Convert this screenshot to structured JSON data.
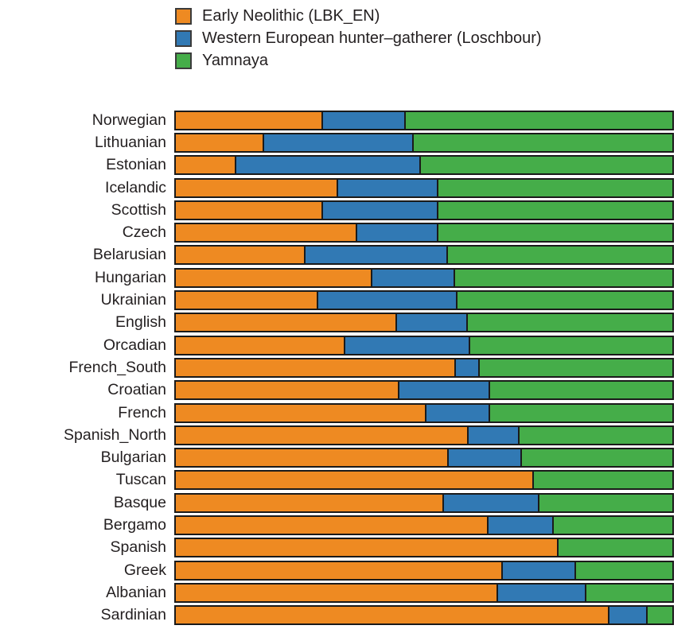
{
  "chart_data": {
    "type": "bar",
    "orientation": "horizontal",
    "stacked": true,
    "title": "",
    "xlabel": "",
    "ylabel": "",
    "units": "percent ancestry (bars span 0-100%)",
    "xlim": [
      0,
      100
    ],
    "grid": false,
    "legend_position": "top",
    "legend": [
      {
        "label": "Early Neolithic (LBK_EN)",
        "color": "#ee8a22"
      },
      {
        "label": "Western European hunter–gatherer (Loschbour)",
        "color": "#3179b4"
      },
      {
        "label": "Yamnaya",
        "color": "#45ad49"
      }
    ],
    "categories": [
      "Norwegian",
      "Lithuanian",
      "Estonian",
      "Icelandic",
      "Scottish",
      "Czech",
      "Belarusian",
      "Hungarian",
      "Ukrainian",
      "English",
      "Orcadian",
      "French_South",
      "Croatian",
      "French",
      "Spanish_North",
      "Bulgarian",
      "Tuscan",
      "Basque",
      "Bergamo",
      "Spanish",
      "Greek",
      "Albanian",
      "Sardinian"
    ],
    "series": [
      {
        "name": "Early Neolithic (LBK_EN)",
        "color": "#ee8a22",
        "values": [
          29.5,
          17.5,
          12.0,
          32.5,
          29.5,
          36.5,
          26.0,
          39.5,
          28.5,
          44.5,
          34.0,
          56.5,
          45.0,
          50.5,
          59.0,
          55.0,
          72.0,
          54.0,
          63.0,
          77.0,
          66.0,
          65.0,
          87.5
        ]
      },
      {
        "name": "Western European hunter–gatherer (Loschbour)",
        "color": "#3179b4",
        "values": [
          16.5,
          30.0,
          37.0,
          20.0,
          23.0,
          16.0,
          28.5,
          16.5,
          28.0,
          14.0,
          25.0,
          4.5,
          18.0,
          12.5,
          10.0,
          14.5,
          0.0,
          19.0,
          13.0,
          0.0,
          14.5,
          17.5,
          7.5
        ]
      },
      {
        "name": "Yamnaya",
        "color": "#45ad49",
        "values": [
          54.0,
          52.5,
          51.0,
          47.5,
          47.5,
          47.5,
          45.5,
          44.0,
          43.5,
          41.5,
          41.0,
          39.0,
          37.0,
          37.0,
          31.0,
          30.5,
          28.0,
          27.0,
          24.0,
          23.0,
          19.5,
          17.5,
          5.0
        ]
      }
    ]
  },
  "colors": {
    "early_neolithic": "#ee8a22",
    "hunter_gatherer": "#3179b4",
    "yamnaya": "#45ad49",
    "bar_border": "#1a1a1a",
    "text": "#231f20",
    "background": "#ffffff"
  }
}
